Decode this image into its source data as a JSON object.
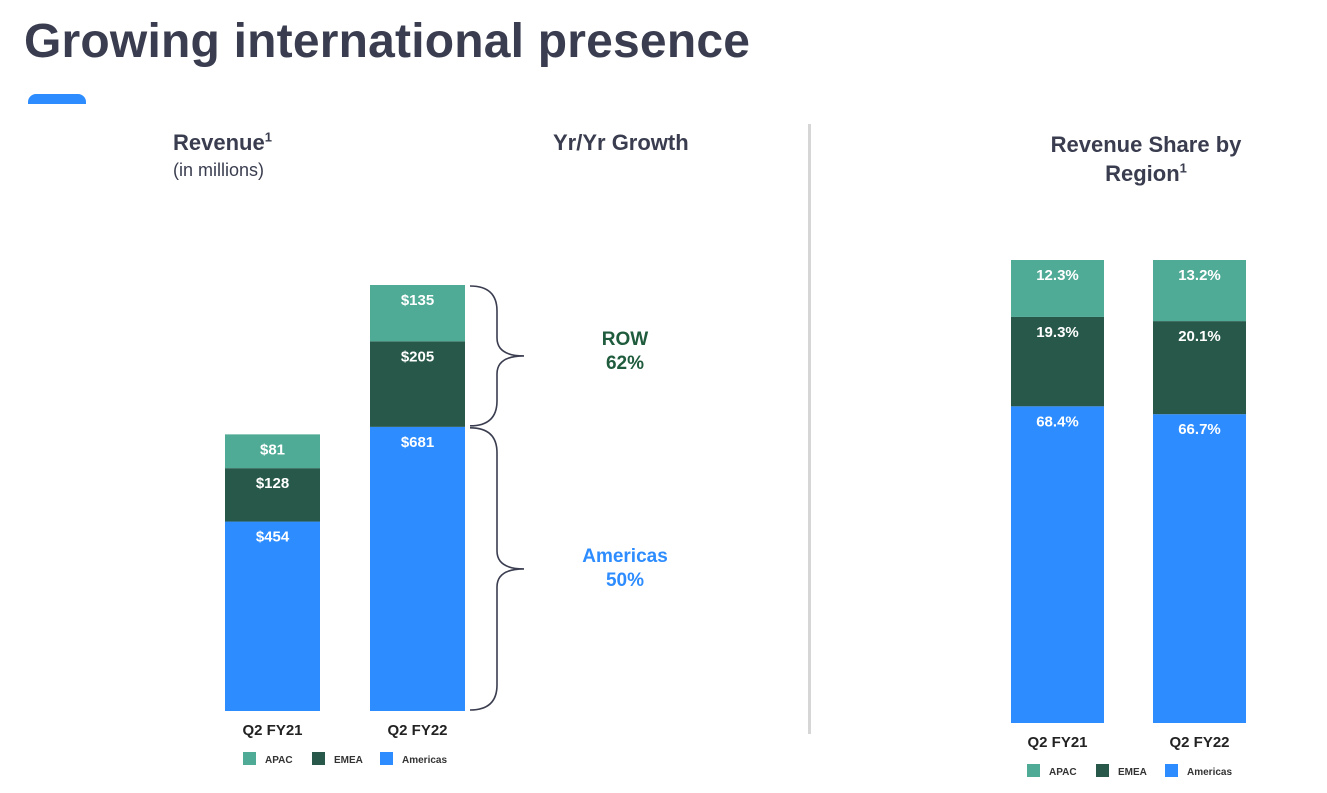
{
  "title": "Growing international presence",
  "colors": {
    "accent": "#2d8cff",
    "apac": "#4faa96",
    "emea": "#275849",
    "americas": "#2d8cff",
    "row_text": "#1f5b3d",
    "americas_text": "#2d8cff"
  },
  "revenue_heading": {
    "title": "Revenue",
    "sup": "1",
    "subtitle": "(in millions)"
  },
  "growth_heading": "Yr/Yr Growth",
  "share_heading": {
    "title": "Revenue Share by Region",
    "sup": "1"
  },
  "growth": {
    "row": {
      "label": "ROW",
      "value": "62%"
    },
    "americas": {
      "label": "Americas",
      "value": "50%"
    }
  },
  "legend": [
    "APAC",
    "EMEA",
    "Americas"
  ],
  "chart_data": [
    {
      "type": "bar",
      "stacked": true,
      "title": "Revenue",
      "subtitle": "(in millions)",
      "categories": [
        "Q2 FY21",
        "Q2 FY22"
      ],
      "series": [
        {
          "name": "Americas",
          "values": [
            454,
            681
          ],
          "labels": [
            "$454",
            "$681"
          ]
        },
        {
          "name": "EMEA",
          "values": [
            128,
            205
          ],
          "labels": [
            "$128",
            "$205"
          ]
        },
        {
          "name": "APAC",
          "values": [
            81,
            135
          ],
          "labels": [
            "$81",
            "$135"
          ]
        }
      ],
      "legend": "bottom-center"
    },
    {
      "type": "bar",
      "stacked": true,
      "title": "Revenue Share by Region",
      "categories": [
        "Q2 FY21",
        "Q2 FY22"
      ],
      "series": [
        {
          "name": "Americas",
          "values": [
            68.4,
            66.7
          ],
          "labels": [
            "68.4%",
            "66.7%"
          ]
        },
        {
          "name": "EMEA",
          "values": [
            19.3,
            20.1
          ],
          "labels": [
            "19.3%",
            "20.1%"
          ]
        },
        {
          "name": "APAC",
          "values": [
            12.3,
            13.2
          ],
          "labels": [
            "12.3%",
            "13.2%"
          ]
        }
      ],
      "ylim": [
        0,
        100
      ],
      "legend": "bottom-center"
    }
  ]
}
